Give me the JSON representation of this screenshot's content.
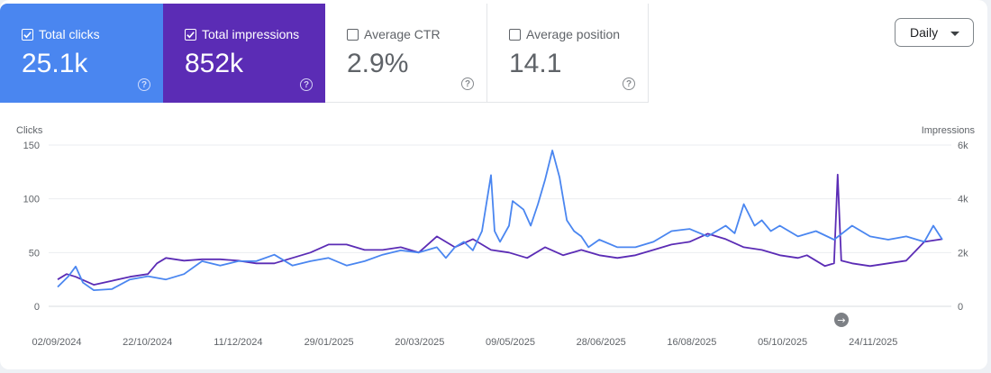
{
  "metrics": {
    "clicks": {
      "label": "Total clicks",
      "value": "25.1k",
      "checked": true,
      "color": "#4a86f0"
    },
    "impressions": {
      "label": "Total impressions",
      "value": "852k",
      "checked": true,
      "color": "#5b2cb5"
    },
    "ctr": {
      "label": "Average CTR",
      "value": "2.9%",
      "checked": false
    },
    "position": {
      "label": "Average position",
      "value": "14.1",
      "checked": false
    }
  },
  "help_glyph": "?",
  "granularity": {
    "selected": "Daily"
  },
  "next_arrow": "→",
  "chart_data": {
    "type": "line",
    "y_left": {
      "label": "Clicks",
      "ticks": [
        "0",
        "50",
        "100",
        "150"
      ],
      "range": [
        0,
        150
      ]
    },
    "y_right": {
      "label": "Impressions",
      "ticks": [
        "0",
        "2k",
        "4k",
        "6k"
      ],
      "range": [
        0,
        6000
      ]
    },
    "x_ticks": [
      "02/09/2024",
      "22/10/2024",
      "11/12/2024",
      "29/01/2025",
      "20/03/2025",
      "09/05/2025",
      "28/06/2025",
      "16/08/2025",
      "05/10/2025",
      "24/11/2025"
    ],
    "x_range_days": [
      0,
      490
    ],
    "series": [
      {
        "name": "Total clicks",
        "axis": "left",
        "color": "#4a86f0",
        "points": [
          [
            0,
            18
          ],
          [
            6,
            28
          ],
          [
            10,
            37
          ],
          [
            14,
            22
          ],
          [
            20,
            15
          ],
          [
            30,
            16
          ],
          [
            40,
            25
          ],
          [
            50,
            28
          ],
          [
            60,
            25
          ],
          [
            70,
            30
          ],
          [
            80,
            42
          ],
          [
            90,
            38
          ],
          [
            100,
            42
          ],
          [
            110,
            42
          ],
          [
            120,
            48
          ],
          [
            130,
            38
          ],
          [
            140,
            42
          ],
          [
            150,
            45
          ],
          [
            160,
            38
          ],
          [
            170,
            42
          ],
          [
            180,
            48
          ],
          [
            190,
            52
          ],
          [
            200,
            50
          ],
          [
            210,
            55
          ],
          [
            215,
            45
          ],
          [
            220,
            55
          ],
          [
            225,
            60
          ],
          [
            230,
            52
          ],
          [
            235,
            70
          ],
          [
            240,
            122
          ],
          [
            242,
            70
          ],
          [
            245,
            60
          ],
          [
            250,
            75
          ],
          [
            252,
            98
          ],
          [
            258,
            90
          ],
          [
            262,
            75
          ],
          [
            266,
            95
          ],
          [
            270,
            118
          ],
          [
            274,
            145
          ],
          [
            278,
            120
          ],
          [
            282,
            80
          ],
          [
            286,
            70
          ],
          [
            290,
            65
          ],
          [
            294,
            55
          ],
          [
            300,
            62
          ],
          [
            310,
            55
          ],
          [
            320,
            55
          ],
          [
            330,
            60
          ],
          [
            340,
            70
          ],
          [
            350,
            72
          ],
          [
            360,
            65
          ],
          [
            370,
            75
          ],
          [
            375,
            68
          ],
          [
            380,
            95
          ],
          [
            386,
            75
          ],
          [
            390,
            80
          ],
          [
            395,
            70
          ],
          [
            400,
            75
          ],
          [
            410,
            65
          ],
          [
            420,
            70
          ],
          [
            430,
            62
          ],
          [
            440,
            75
          ],
          [
            450,
            65
          ],
          [
            460,
            62
          ],
          [
            470,
            65
          ],
          [
            480,
            60
          ],
          [
            485,
            75
          ],
          [
            490,
            62
          ]
        ]
      },
      {
        "name": "Total impressions",
        "axis": "right",
        "color": "#5b2cb5",
        "points": [
          [
            0,
            1000
          ],
          [
            5,
            1200
          ],
          [
            10,
            1100
          ],
          [
            20,
            800
          ],
          [
            30,
            950
          ],
          [
            40,
            1100
          ],
          [
            50,
            1200
          ],
          [
            55,
            1600
          ],
          [
            60,
            1800
          ],
          [
            70,
            1700
          ],
          [
            80,
            1750
          ],
          [
            90,
            1750
          ],
          [
            100,
            1700
          ],
          [
            110,
            1600
          ],
          [
            120,
            1600
          ],
          [
            130,
            1800
          ],
          [
            140,
            2000
          ],
          [
            150,
            2300
          ],
          [
            160,
            2300
          ],
          [
            170,
            2100
          ],
          [
            180,
            2100
          ],
          [
            190,
            2200
          ],
          [
            200,
            2000
          ],
          [
            210,
            2600
          ],
          [
            220,
            2200
          ],
          [
            230,
            2500
          ],
          [
            240,
            2100
          ],
          [
            250,
            2000
          ],
          [
            260,
            1800
          ],
          [
            270,
            2200
          ],
          [
            280,
            1900
          ],
          [
            290,
            2100
          ],
          [
            300,
            1900
          ],
          [
            310,
            1800
          ],
          [
            320,
            1900
          ],
          [
            330,
            2100
          ],
          [
            340,
            2300
          ],
          [
            350,
            2400
          ],
          [
            360,
            2700
          ],
          [
            370,
            2500
          ],
          [
            380,
            2200
          ],
          [
            390,
            2100
          ],
          [
            400,
            1900
          ],
          [
            410,
            1800
          ],
          [
            415,
            1900
          ],
          [
            420,
            1700
          ],
          [
            425,
            1500
          ],
          [
            430,
            1600
          ],
          [
            432,
            4900
          ],
          [
            434,
            1700
          ],
          [
            440,
            1600
          ],
          [
            450,
            1500
          ],
          [
            460,
            1600
          ],
          [
            470,
            1700
          ],
          [
            480,
            2400
          ],
          [
            490,
            2500
          ]
        ]
      }
    ]
  }
}
